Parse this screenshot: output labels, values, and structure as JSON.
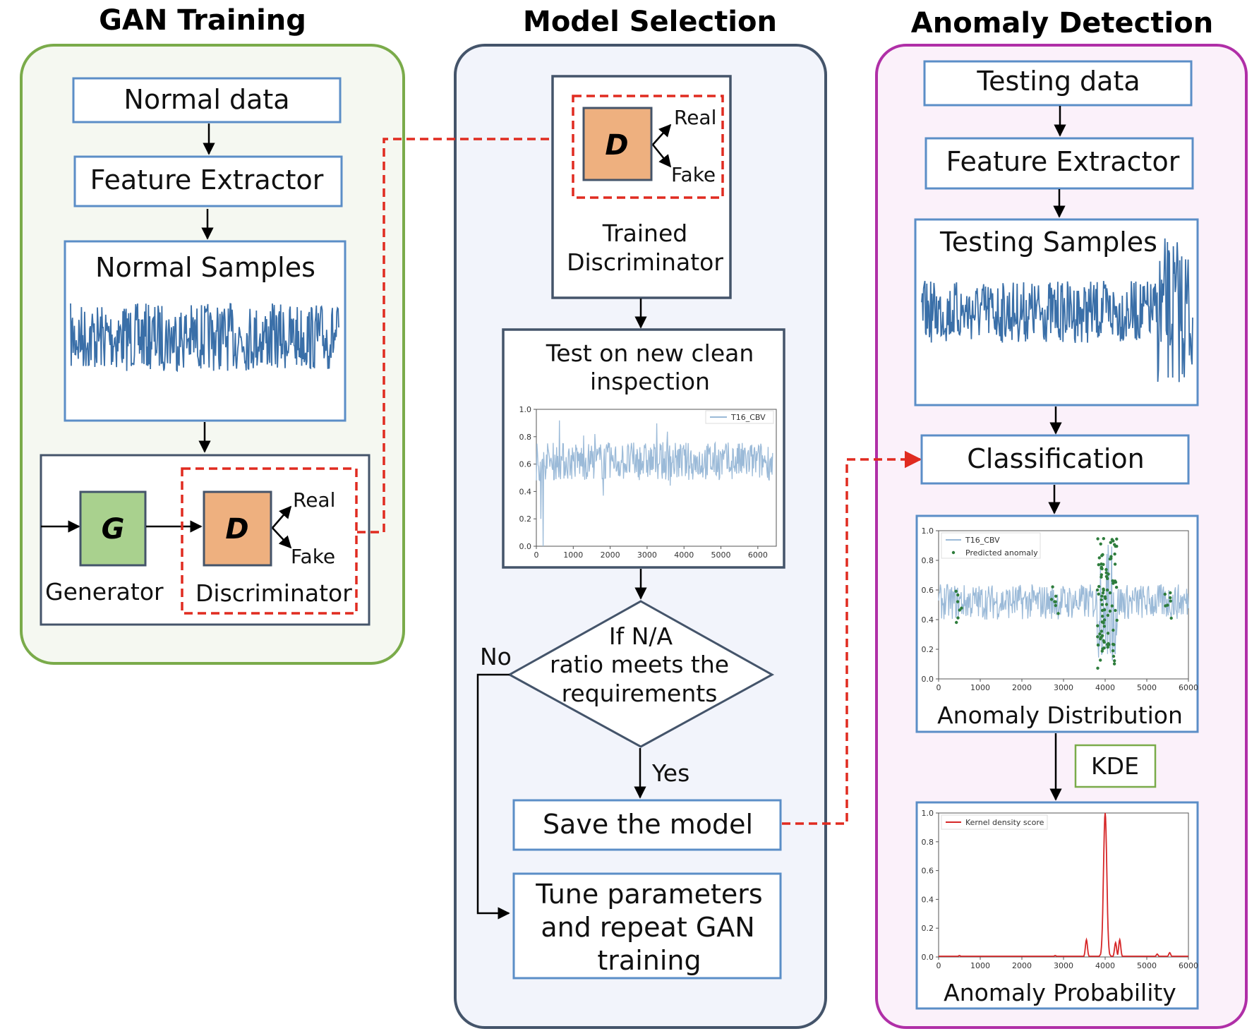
{
  "headers": {
    "gan_training": "GAN Training",
    "model_selection": "Model Selection",
    "anomaly_detection": "Anomaly Detection"
  },
  "gan": {
    "normal_data": "Normal data",
    "feature_extractor": "Feature Extractor",
    "normal_samples": "Normal Samples",
    "generator_letter": "G",
    "discriminator_letter": "D",
    "real": "Real",
    "fake": "Fake",
    "generator": "Generator",
    "discriminator": "Discriminator"
  },
  "selection": {
    "discriminator_letter": "D",
    "real": "Real",
    "fake": "Fake",
    "trained_line1": "Trained",
    "trained_line2": "Discriminator",
    "test_line1": "Test on new clean",
    "test_line2": "inspection",
    "decision_line1": "If N/A",
    "decision_line2": "ratio meets the",
    "decision_line3": "requirements",
    "no": "No",
    "yes": "Yes",
    "save": "Save the model",
    "tune_line1": "Tune parameters",
    "tune_line2": "and repeat GAN",
    "tune_line3": "training"
  },
  "detection": {
    "testing_data": "Testing data",
    "feature_extractor": "Feature Extractor",
    "testing_samples": "Testing Samples",
    "classification": "Classification",
    "anomaly_distribution": "Anomaly Distribution",
    "kde": "KDE",
    "anomaly_probability": "Anomaly Probability"
  },
  "colors": {
    "gan_border": "#7aab4a",
    "selection_border": "#44546a",
    "detection_border": "#b02fa7",
    "box_border": "#5b8ec7",
    "dashed_red": "#e02b20",
    "generator_fill": "#a9d18e",
    "discriminator_fill": "#eeb07f",
    "signal_blue": "#3a6fa8",
    "plot_blue": "#9bbad8",
    "anomaly_green": "#2e7d3c",
    "kde_red": "#d62728"
  },
  "chart_data": [
    {
      "type": "line",
      "legend": [
        "T16_CBV"
      ],
      "xlim": [
        0,
        6500
      ],
      "ylim": [
        0,
        1.0
      ],
      "xticks": [
        0,
        1000,
        2000,
        3000,
        4000,
        5000,
        6000
      ],
      "yticks": [
        0.0,
        0.2,
        0.4,
        0.6,
        0.8,
        1.0
      ],
      "legend_position": "top-right",
      "series": [
        {
          "name": "T16_CBV",
          "mean": 0.62,
          "min": 0.0,
          "max": 0.95
        }
      ]
    },
    {
      "type": "scatter",
      "legend": [
        "T16_CBV",
        "Predicted anomaly"
      ],
      "xlim": [
        0,
        6000
      ],
      "ylim": [
        0,
        1.0
      ],
      "xticks": [
        0,
        1000,
        2000,
        3000,
        4000,
        5000,
        6000
      ],
      "yticks": [
        0.0,
        0.2,
        0.4,
        0.6,
        0.8,
        1.0
      ],
      "legend_position": "top-left",
      "anomaly_x_clusters": [
        500,
        2800,
        3900,
        4000,
        4200,
        5500
      ]
    },
    {
      "type": "line",
      "legend": [
        "Kernel density score"
      ],
      "xlim": [
        0,
        6000
      ],
      "ylim": [
        0,
        1.0
      ],
      "xticks": [
        0,
        1000,
        2000,
        3000,
        4000,
        5000,
        6000
      ],
      "yticks": [
        0.0,
        0.2,
        0.4,
        0.6,
        0.8,
        1.0
      ],
      "legend_position": "top-left",
      "series": [
        {
          "name": "Kernel density score",
          "x": [
            0,
            500,
            2800,
            3550,
            3900,
            4000,
            4100,
            4250,
            4350,
            5250,
            5550,
            6000
          ],
          "y": [
            0.0,
            0.01,
            0.01,
            0.12,
            0.02,
            1.0,
            0.02,
            0.1,
            0.12,
            0.02,
            0.03,
            0.0
          ]
        }
      ]
    }
  ]
}
